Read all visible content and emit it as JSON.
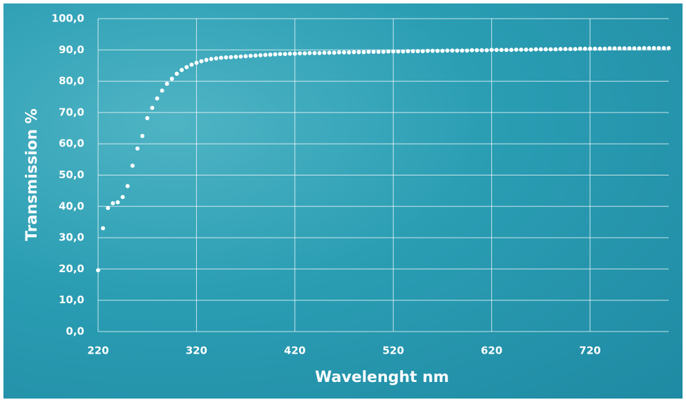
{
  "chart_data": {
    "type": "scatter",
    "x_label": "Wavelenght nm",
    "y_label": "Transmission %",
    "color": "#ffffff",
    "grid": true,
    "xlim": [
      220,
      800
    ],
    "ylim": [
      0,
      100
    ],
    "xticks": [
      220,
      320,
      420,
      520,
      620,
      720
    ],
    "yticks": [
      {
        "value": 0,
        "label": "0,0"
      },
      {
        "value": 10,
        "label": "10,0"
      },
      {
        "value": 20,
        "label": "20,0"
      },
      {
        "value": 30,
        "label": "30,0"
      },
      {
        "value": 40,
        "label": "40,0"
      },
      {
        "value": 50,
        "label": "50,0"
      },
      {
        "value": 60,
        "label": "60,0"
      },
      {
        "value": 70,
        "label": "70,0"
      },
      {
        "value": 80,
        "label": "80,0"
      },
      {
        "value": 90,
        "label": "90,0"
      },
      {
        "value": 100,
        "label": "100,0"
      }
    ],
    "x": [
      220,
      225,
      230,
      235,
      240,
      245,
      250,
      255,
      260,
      265,
      270,
      275,
      280,
      285,
      290,
      295,
      300,
      305,
      310,
      315,
      320,
      325,
      330,
      335,
      340,
      345,
      350,
      355,
      360,
      365,
      370,
      375,
      380,
      385,
      390,
      395,
      400,
      405,
      410,
      415,
      420,
      425,
      430,
      435,
      440,
      445,
      450,
      455,
      460,
      465,
      470,
      475,
      480,
      485,
      490,
      495,
      500,
      505,
      510,
      515,
      520,
      525,
      530,
      535,
      540,
      545,
      550,
      555,
      560,
      565,
      570,
      575,
      580,
      585,
      590,
      595,
      600,
      605,
      610,
      615,
      620,
      625,
      630,
      635,
      640,
      645,
      650,
      655,
      660,
      665,
      670,
      675,
      680,
      685,
      690,
      695,
      700,
      705,
      710,
      715,
      720,
      725,
      730,
      735,
      740,
      745,
      750,
      755,
      760,
      765,
      770,
      775,
      780,
      785,
      790,
      795,
      800
    ],
    "values": [
      19.6,
      33,
      39.5,
      41,
      41.3,
      43,
      46.5,
      53,
      58.5,
      62.5,
      68.2,
      71.5,
      74.5,
      77,
      79.2,
      80.8,
      82.4,
      83.6,
      84.5,
      85.3,
      85.9,
      86.4,
      86.8,
      87.1,
      87.3,
      87.5,
      87.6,
      87.7,
      87.8,
      87.9,
      88.0,
      88.1,
      88.2,
      88.3,
      88.4,
      88.5,
      88.6,
      88.7,
      88.7,
      88.8,
      88.8,
      88.9,
      88.9,
      89.0,
      89.0,
      89.0,
      89.1,
      89.1,
      89.1,
      89.2,
      89.2,
      89.2,
      89.3,
      89.3,
      89.3,
      89.4,
      89.4,
      89.4,
      89.4,
      89.5,
      89.5,
      89.5,
      89.5,
      89.6,
      89.6,
      89.6,
      89.6,
      89.7,
      89.7,
      89.7,
      89.7,
      89.8,
      89.8,
      89.8,
      89.8,
      89.8,
      89.9,
      89.9,
      89.9,
      89.9,
      90.0,
      90.0,
      90.0,
      90.0,
      90.0,
      90.1,
      90.1,
      90.1,
      90.1,
      90.2,
      90.2,
      90.2,
      90.2,
      90.2,
      90.3,
      90.3,
      90.3,
      90.3,
      90.4,
      90.4,
      90.4,
      90.4,
      90.4,
      90.4,
      90.5,
      90.5,
      90.5,
      90.5,
      90.5,
      90.5,
      90.5,
      90.6,
      90.6,
      90.6,
      90.6,
      90.6,
      90.6
    ]
  }
}
